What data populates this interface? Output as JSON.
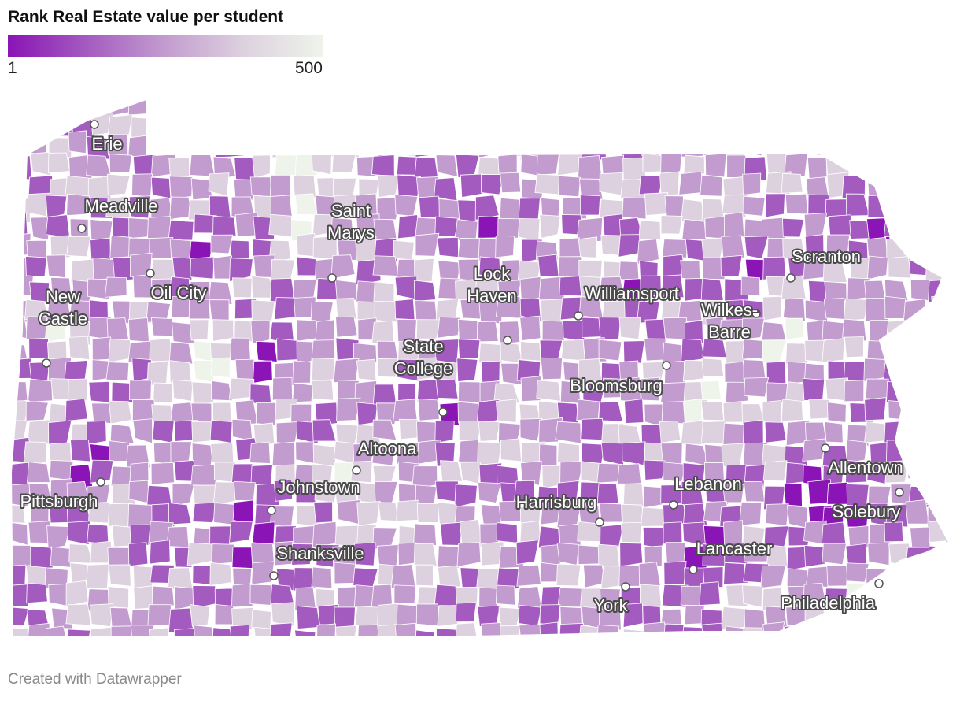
{
  "title": "Rank Real Estate value per student",
  "legend": {
    "min_label": "1",
    "max_label": "500",
    "colors": [
      "#8a14b5",
      "#a45bc0",
      "#c39ccf",
      "#ddd1df",
      "#eef4ea"
    ]
  },
  "credit": "Created with Datawrapper",
  "cities": [
    {
      "name": "Erie",
      "lines": [
        "Erie"
      ]
    },
    {
      "name": "Meadville",
      "lines": [
        "Meadville"
      ]
    },
    {
      "name": "Oil City",
      "lines": [
        "Oil City"
      ]
    },
    {
      "name": "Saint Marys",
      "lines": [
        "Saint",
        "Marys"
      ]
    },
    {
      "name": "New Castle",
      "lines": [
        "New",
        "Castle"
      ]
    },
    {
      "name": "Lock Haven",
      "lines": [
        "Lock",
        "Haven"
      ]
    },
    {
      "name": "Williamsport",
      "lines": [
        "Williamsport"
      ]
    },
    {
      "name": "Scranton",
      "lines": [
        "Scranton"
      ]
    },
    {
      "name": "Wilkes-Barre",
      "lines": [
        "Wilkes-",
        "Barre"
      ]
    },
    {
      "name": "State College",
      "lines": [
        "State",
        "College"
      ]
    },
    {
      "name": "Bloomsburg",
      "lines": [
        "Bloomsburg"
      ]
    },
    {
      "name": "Altoona",
      "lines": [
        "Altoona"
      ]
    },
    {
      "name": "Johnstown",
      "lines": [
        "Johnstown"
      ]
    },
    {
      "name": "Pittsburgh",
      "lines": [
        "Pittsburgh"
      ]
    },
    {
      "name": "Allentown",
      "lines": [
        "Allentown"
      ]
    },
    {
      "name": "Harrisburg",
      "lines": [
        "Harrisburg"
      ]
    },
    {
      "name": "Lebanon",
      "lines": [
        "Lebanon"
      ]
    },
    {
      "name": "Solebury",
      "lines": [
        "Solebury"
      ]
    },
    {
      "name": "Shanksville",
      "lines": [
        "Shanksville"
      ]
    },
    {
      "name": "Lancaster",
      "lines": [
        "Lancaster"
      ]
    },
    {
      "name": "York",
      "lines": [
        "York"
      ]
    },
    {
      "name": "Philadelphia",
      "lines": [
        "Philadelphia"
      ]
    }
  ]
}
